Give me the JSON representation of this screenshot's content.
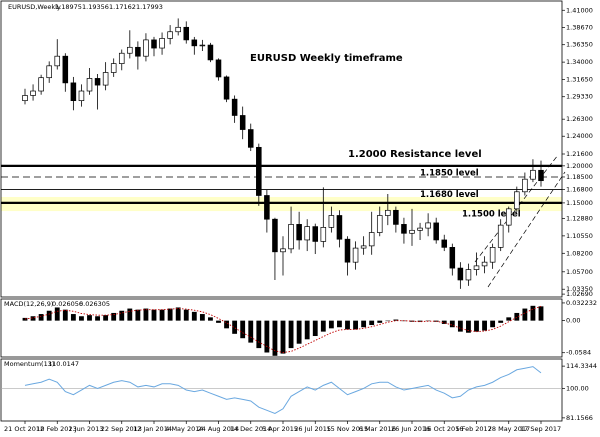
{
  "chart_data": [
    {
      "type": "candlestick",
      "title": "EURUSD Weekly timeframe",
      "symbol": "EURUSD,Weekly",
      "quote": [
        1.18975,
        1.19356,
        1.17162,
        1.17993
      ],
      "categories": [
        "21 Oct 2012",
        null,
        null,
        null,
        "10 Feb 2013",
        null,
        null,
        null,
        "2 Jun 2013",
        null,
        null,
        null,
        "22 Sep 2013",
        null,
        null,
        null,
        "12 Jan 2014",
        null,
        null,
        null,
        "4 May 2014",
        null,
        null,
        null,
        "24 Aug 2014",
        null,
        null,
        null,
        "14 Dec 2014",
        null,
        null,
        null,
        "5 Apr 2015",
        null,
        null,
        null,
        "26 Jul 2015",
        null,
        null,
        null,
        "15 Nov 2015",
        null,
        null,
        null,
        "6 Mar 2016",
        null,
        null,
        null,
        "26 Jun 2016",
        null,
        null,
        null,
        "16 Oct 2016",
        null,
        null,
        null,
        "5 Feb 2017",
        null,
        null,
        null,
        "28 May 2017",
        null,
        null,
        null,
        "17 Sep 2017"
      ],
      "open": [
        1.288,
        1.295,
        1.301,
        1.319,
        1.335,
        1.348,
        1.312,
        1.288,
        1.301,
        1.318,
        1.309,
        1.326,
        1.338,
        1.352,
        1.36,
        1.348,
        1.37,
        1.359,
        1.372,
        1.381,
        1.387,
        1.37,
        1.362,
        1.363,
        1.343,
        1.32,
        1.29,
        1.268,
        1.249,
        1.225,
        1.16,
        1.128,
        1.084,
        1.088,
        1.121,
        1.1,
        1.118,
        1.098,
        1.117,
        1.133,
        1.101,
        1.07,
        1.089,
        1.092,
        1.11,
        1.133,
        1.14,
        1.121,
        1.109,
        1.113,
        1.116,
        1.123,
        1.1,
        1.09,
        1.062,
        1.046,
        1.06,
        1.065,
        1.07,
        1.09,
        1.12,
        1.142,
        1.165,
        1.182,
        1.194
      ],
      "high": [
        1.304,
        1.31,
        1.323,
        1.341,
        1.371,
        1.352,
        1.32,
        1.31,
        1.332,
        1.324,
        1.34,
        1.345,
        1.357,
        1.383,
        1.368,
        1.379,
        1.374,
        1.38,
        1.39,
        1.399,
        1.395,
        1.374,
        1.37,
        1.366,
        1.345,
        1.322,
        1.295,
        1.28,
        1.257,
        1.23,
        1.168,
        1.13,
        1.105,
        1.145,
        1.138,
        1.128,
        1.122,
        1.171,
        1.145,
        1.14,
        1.105,
        1.098,
        1.105,
        1.138,
        1.145,
        1.162,
        1.145,
        1.13,
        1.142,
        1.123,
        1.136,
        1.13,
        1.107,
        1.095,
        1.07,
        1.068,
        1.083,
        1.078,
        1.095,
        1.128,
        1.145,
        1.172,
        1.191,
        1.209,
        1.207
      ],
      "low": [
        1.283,
        1.288,
        1.296,
        1.312,
        1.33,
        1.3,
        1.275,
        1.28,
        1.296,
        1.276,
        1.302,
        1.32,
        1.329,
        1.345,
        1.33,
        1.341,
        1.348,
        1.35,
        1.364,
        1.376,
        1.365,
        1.35,
        1.355,
        1.34,
        1.315,
        1.286,
        1.258,
        1.236,
        1.22,
        1.146,
        1.11,
        1.046,
        1.052,
        1.082,
        1.087,
        1.085,
        1.081,
        1.09,
        1.11,
        1.09,
        1.052,
        1.06,
        1.08,
        1.08,
        1.105,
        1.12,
        1.11,
        1.095,
        1.092,
        1.1,
        1.105,
        1.095,
        1.085,
        1.052,
        1.034,
        1.038,
        1.052,
        1.055,
        1.061,
        1.085,
        1.11,
        1.138,
        1.16,
        1.178,
        1.172
      ],
      "close": [
        1.295,
        1.301,
        1.319,
        1.335,
        1.348,
        1.312,
        1.288,
        1.301,
        1.318,
        1.309,
        1.326,
        1.338,
        1.352,
        1.36,
        1.348,
        1.37,
        1.359,
        1.372,
        1.381,
        1.387,
        1.37,
        1.362,
        1.363,
        1.343,
        1.32,
        1.29,
        1.268,
        1.249,
        1.225,
        1.16,
        1.128,
        1.084,
        1.088,
        1.121,
        1.1,
        1.118,
        1.098,
        1.117,
        1.133,
        1.101,
        1.07,
        1.089,
        1.092,
        1.11,
        1.133,
        1.14,
        1.121,
        1.109,
        1.113,
        1.116,
        1.123,
        1.1,
        1.09,
        1.062,
        1.046,
        1.06,
        1.065,
        1.07,
        1.09,
        1.12,
        1.142,
        1.165,
        1.182,
        1.194,
        1.18
      ],
      "ylim": [
        1.023,
        1.4225
      ],
      "yticks": [
        {
          "value": 1.41,
          "label": "1.41000"
        },
        {
          "value": 1.3867,
          "label": "1.38670"
        },
        {
          "value": 1.3635,
          "label": "1.36350"
        },
        {
          "value": 1.34,
          "label": "1.34000"
        },
        {
          "value": 1.3165,
          "label": "1.31650"
        },
        {
          "value": 1.2933,
          "label": "1.29330"
        },
        {
          "value": 1.263,
          "label": "1.26300"
        },
        {
          "value": 1.24,
          "label": "1.24000"
        },
        {
          "value": 1.216,
          "label": "1.21600"
        },
        {
          "value": 1.2,
          "label": "1.20000"
        },
        {
          "value": 1.185,
          "label": "1.18500"
        },
        {
          "value": 1.168,
          "label": "1.16800"
        },
        {
          "value": 1.15,
          "label": "1.15000"
        },
        {
          "value": 1.1288,
          "label": "1.12880"
        },
        {
          "value": 1.1055,
          "label": "1.10550"
        },
        {
          "value": 1.082,
          "label": "1.08200"
        },
        {
          "value": 1.057,
          "label": "1.05700"
        },
        {
          "value": 1.0335,
          "label": "1.03350"
        },
        {
          "value": 1.0269,
          "label": "1.02690"
        }
      ],
      "highlight_band": [
        1.139,
        1.158
      ],
      "highlight_color": "#ffffc8",
      "levels": [
        {
          "value": 1.2,
          "label": "1.2000 Resistance level",
          "style": "thick"
        },
        {
          "value": 1.185,
          "label": "1.1850 level",
          "style": "dashed"
        },
        {
          "value": 1.168,
          "label": "1.1680 level",
          "style": "thin"
        },
        {
          "value": 1.15,
          "label": "1.1500 level",
          "style": "thick"
        }
      ],
      "up_color": "#ffffff",
      "down_color": "#000000"
    },
    {
      "type": "macd",
      "name": "MACD(12,26,9)",
      "current": [
        0.026056,
        0.026305
      ],
      "values": [
        0.005,
        0.008,
        0.012,
        0.018,
        0.024,
        0.02,
        0.012,
        0.008,
        0.01,
        0.008,
        0.01,
        0.014,
        0.018,
        0.022,
        0.02,
        0.022,
        0.02,
        0.02,
        0.022,
        0.024,
        0.02,
        0.016,
        0.012,
        0.006,
        -0.004,
        -0.014,
        -0.024,
        -0.032,
        -0.04,
        -0.05,
        -0.058,
        -0.064,
        -0.06,
        -0.05,
        -0.042,
        -0.034,
        -0.028,
        -0.02,
        -0.014,
        -0.012,
        -0.016,
        -0.016,
        -0.012,
        -0.008,
        -0.004,
        0.0,
        0.002,
        0.0,
        -0.002,
        -0.002,
        0.0,
        -0.002,
        -0.006,
        -0.012,
        -0.02,
        -0.022,
        -0.02,
        -0.018,
        -0.012,
        -0.004,
        0.006,
        0.014,
        0.022,
        0.027,
        0.026
      ],
      "signal": [
        0.003,
        0.005,
        0.008,
        0.012,
        0.017,
        0.019,
        0.017,
        0.013,
        0.011,
        0.01,
        0.01,
        0.011,
        0.014,
        0.017,
        0.019,
        0.02,
        0.02,
        0.02,
        0.021,
        0.022,
        0.021,
        0.019,
        0.016,
        0.011,
        0.004,
        -0.004,
        -0.013,
        -0.022,
        -0.03,
        -0.039,
        -0.047,
        -0.055,
        -0.058,
        -0.056,
        -0.05,
        -0.043,
        -0.036,
        -0.029,
        -0.022,
        -0.017,
        -0.016,
        -0.016,
        -0.014,
        -0.011,
        -0.007,
        -0.003,
        0.0,
        0.0,
        -0.001,
        -0.002,
        -0.001,
        -0.001,
        -0.004,
        -0.008,
        -0.014,
        -0.018,
        -0.02,
        -0.019,
        -0.016,
        -0.01,
        -0.002,
        0.006,
        0.014,
        0.021,
        0.026
      ],
      "ylim": [
        -0.0662,
        0.0394
      ],
      "yticks": [
        0.032232,
        {
          "value": 0,
          "label": "0.00"
        },
        -0.0584
      ],
      "color": "#000000",
      "signal_color": "#c00000"
    },
    {
      "type": "line",
      "name": "Momentum(13)",
      "current": 110.0147,
      "values": [
        102,
        103,
        104,
        106,
        104,
        98,
        96,
        99,
        102,
        100,
        102,
        104,
        105,
        104,
        101,
        102,
        101,
        103,
        103,
        102,
        99,
        98,
        99,
        97,
        95,
        93,
        94,
        93,
        92,
        88,
        86,
        84,
        87,
        95,
        98,
        101,
        99,
        102,
        104,
        100,
        96,
        98,
        100,
        103,
        104,
        104,
        101,
        99,
        100,
        101,
        102,
        99,
        97,
        94,
        95,
        99,
        101,
        102,
        104,
        107,
        109,
        112,
        113,
        114,
        110
      ],
      "ylim": [
        79.15,
        118.9
      ],
      "yticks": [
        114.3344,
        {
          "value": 100,
          "label": "100.00"
        },
        81.1566
      ],
      "color": "#6aa8e0"
    }
  ]
}
